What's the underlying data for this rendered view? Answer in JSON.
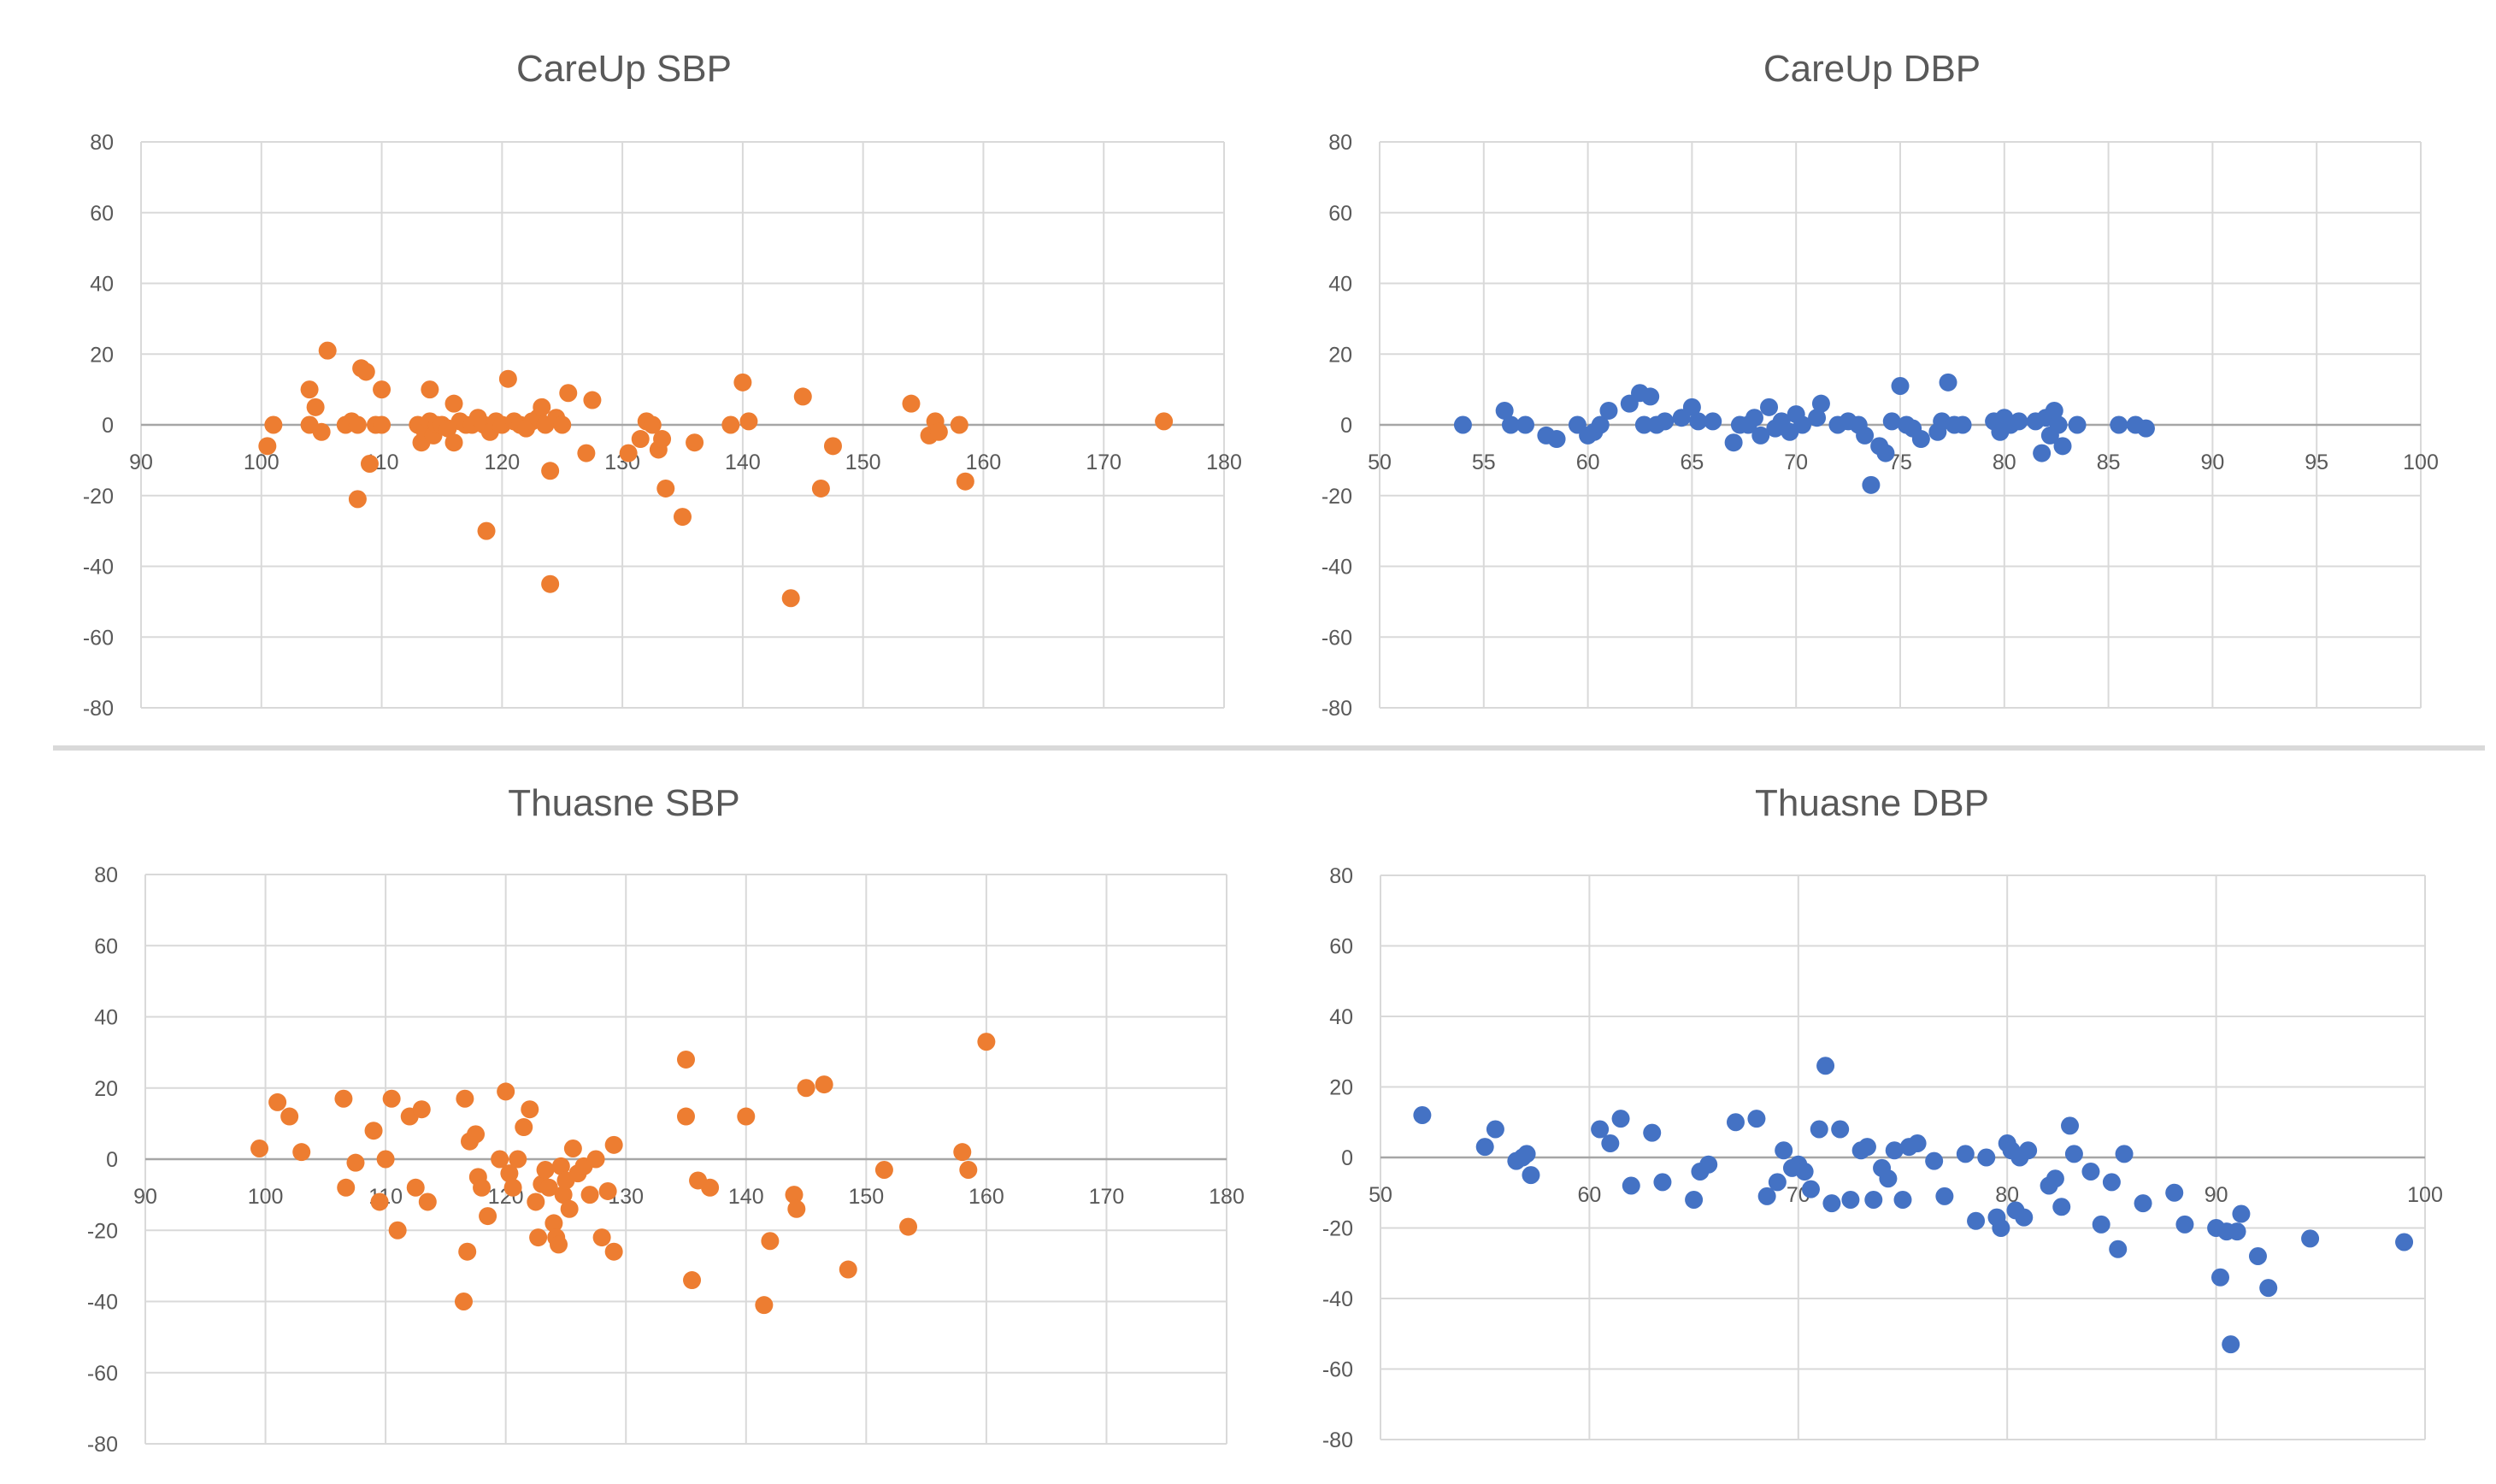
{
  "chart_data": [
    {
      "type": "scatter",
      "title": "CareUp SBP",
      "xlim": [
        90,
        180
      ],
      "ylim": [
        -80,
        80
      ],
      "xticks": [
        90,
        100,
        110,
        120,
        130,
        140,
        150,
        160,
        170,
        180
      ],
      "yticks": [
        -80,
        -60,
        -40,
        -20,
        0,
        20,
        40,
        60,
        80
      ],
      "grid": true,
      "color": "#ED7D31",
      "points": [
        [
          100.5,
          -6
        ],
        [
          101,
          0
        ],
        [
          104,
          10
        ],
        [
          104,
          0
        ],
        [
          104.5,
          5
        ],
        [
          105,
          -2
        ],
        [
          105.5,
          21
        ],
        [
          107,
          0
        ],
        [
          107.5,
          1
        ],
        [
          108,
          0
        ],
        [
          108,
          -21
        ],
        [
          108.3,
          16
        ],
        [
          108.7,
          15
        ],
        [
          109,
          -11
        ],
        [
          109.5,
          0
        ],
        [
          110,
          10
        ],
        [
          110,
          0
        ],
        [
          113,
          0
        ],
        [
          113.3,
          -5
        ],
        [
          113.6,
          -2
        ],
        [
          114,
          10
        ],
        [
          114,
          1
        ],
        [
          114.3,
          -3
        ],
        [
          114.6,
          0
        ],
        [
          115,
          0
        ],
        [
          115.5,
          -1
        ],
        [
          116,
          6
        ],
        [
          116,
          -5
        ],
        [
          116.5,
          1
        ],
        [
          117,
          0
        ],
        [
          117.5,
          0
        ],
        [
          118,
          2
        ],
        [
          118.5,
          0
        ],
        [
          118.7,
          -30
        ],
        [
          119,
          -2
        ],
        [
          119.5,
          1
        ],
        [
          120,
          0
        ],
        [
          120.5,
          13
        ],
        [
          121,
          1
        ],
        [
          121.5,
          0
        ],
        [
          122,
          -1
        ],
        [
          122.5,
          1
        ],
        [
          123,
          2
        ],
        [
          123.3,
          5
        ],
        [
          123.6,
          0
        ],
        [
          124,
          -13
        ],
        [
          124,
          -45
        ],
        [
          124.5,
          2
        ],
        [
          125,
          0
        ],
        [
          125.5,
          9
        ],
        [
          127,
          -8
        ],
        [
          127.5,
          7
        ],
        [
          130.5,
          -8
        ],
        [
          131.5,
          -4
        ],
        [
          132,
          1
        ],
        [
          132.5,
          0
        ],
        [
          133,
          -7
        ],
        [
          133.3,
          -4
        ],
        [
          133.6,
          -18
        ],
        [
          135,
          -26
        ],
        [
          136,
          -5
        ],
        [
          139,
          0
        ],
        [
          140,
          12
        ],
        [
          140.5,
          1
        ],
        [
          144,
          -49
        ],
        [
          145,
          8
        ],
        [
          146.5,
          -18
        ],
        [
          147.5,
          -6
        ],
        [
          154,
          6
        ],
        [
          155.5,
          -3
        ],
        [
          156,
          1
        ],
        [
          156.3,
          -2
        ],
        [
          158,
          0
        ],
        [
          158.5,
          -16
        ],
        [
          175,
          1
        ]
      ]
    },
    {
      "type": "scatter",
      "title": "CareUp DBP",
      "xlim": [
        50,
        100
      ],
      "ylim": [
        -80,
        80
      ],
      "xticks": [
        50,
        55,
        60,
        65,
        70,
        75,
        80,
        85,
        90,
        95,
        100
      ],
      "yticks": [
        -80,
        -60,
        -40,
        -20,
        0,
        20,
        40,
        60,
        80
      ],
      "grid": true,
      "color": "#4472C4",
      "points": [
        [
          54,
          0
        ],
        [
          56,
          4
        ],
        [
          56.3,
          0
        ],
        [
          57,
          0
        ],
        [
          58,
          -3
        ],
        [
          58.5,
          -4
        ],
        [
          59.5,
          0
        ],
        [
          60,
          -3
        ],
        [
          60.3,
          -2
        ],
        [
          60.6,
          0
        ],
        [
          61,
          4
        ],
        [
          62,
          6
        ],
        [
          62.5,
          9
        ],
        [
          62.7,
          0
        ],
        [
          63,
          8
        ],
        [
          63.3,
          0
        ],
        [
          63.7,
          1
        ],
        [
          64.5,
          2
        ],
        [
          65,
          5
        ],
        [
          65.3,
          1
        ],
        [
          66,
          1
        ],
        [
          67,
          -5
        ],
        [
          67.3,
          0
        ],
        [
          67.7,
          0
        ],
        [
          68,
          2
        ],
        [
          68.3,
          -3
        ],
        [
          68.7,
          5
        ],
        [
          69,
          -1
        ],
        [
          69.3,
          1
        ],
        [
          69.7,
          -2
        ],
        [
          70,
          3
        ],
        [
          70.3,
          0
        ],
        [
          71,
          2
        ],
        [
          71.2,
          6
        ],
        [
          72,
          0
        ],
        [
          72.5,
          1
        ],
        [
          73,
          0
        ],
        [
          73.3,
          -3
        ],
        [
          73.6,
          -17
        ],
        [
          74,
          -6
        ],
        [
          74.3,
          -8
        ],
        [
          74.6,
          1
        ],
        [
          75,
          11
        ],
        [
          75.3,
          0
        ],
        [
          75.6,
          -1
        ],
        [
          76,
          -4
        ],
        [
          76.8,
          -2
        ],
        [
          77,
          1
        ],
        [
          77.3,
          12
        ],
        [
          77.6,
          0
        ],
        [
          78,
          0
        ],
        [
          79.5,
          1
        ],
        [
          79.8,
          -2
        ],
        [
          80,
          2
        ],
        [
          80.3,
          0
        ],
        [
          80.7,
          1
        ],
        [
          81.5,
          1
        ],
        [
          81.8,
          -8
        ],
        [
          82,
          2
        ],
        [
          82.2,
          -3
        ],
        [
          82.4,
          4
        ],
        [
          82.6,
          0
        ],
        [
          82.8,
          -6
        ],
        [
          83.5,
          0
        ],
        [
          85.5,
          0
        ],
        [
          86.3,
          0
        ],
        [
          86.8,
          -1
        ]
      ]
    },
    {
      "type": "scatter",
      "title": "Thuasne SBP",
      "xlim": [
        90,
        180
      ],
      "ylim": [
        -80,
        80
      ],
      "xticks": [
        90,
        100,
        110,
        120,
        130,
        140,
        150,
        160,
        170,
        180
      ],
      "yticks": [
        -80,
        -60,
        -40,
        -20,
        0,
        20,
        40,
        60,
        80
      ],
      "grid": true,
      "color": "#ED7D31",
      "points": [
        [
          99.5,
          3
        ],
        [
          101,
          16
        ],
        [
          102,
          12
        ],
        [
          103,
          2
        ],
        [
          106.5,
          17
        ],
        [
          106.7,
          -8
        ],
        [
          107.5,
          -1
        ],
        [
          109,
          8
        ],
        [
          109.5,
          -12
        ],
        [
          110,
          0
        ],
        [
          110.5,
          17
        ],
        [
          111,
          -20
        ],
        [
          112,
          12
        ],
        [
          112.5,
          -8
        ],
        [
          113,
          14
        ],
        [
          113.5,
          -12
        ],
        [
          116.5,
          -40
        ],
        [
          116.6,
          17
        ],
        [
          116.8,
          -26
        ],
        [
          117,
          5
        ],
        [
          117.5,
          7
        ],
        [
          117.7,
          -5
        ],
        [
          118,
          -8
        ],
        [
          118.5,
          -16
        ],
        [
          119.5,
          0
        ],
        [
          120,
          19
        ],
        [
          120.3,
          -4
        ],
        [
          120.6,
          -8
        ],
        [
          121,
          0
        ],
        [
          121.5,
          9
        ],
        [
          122,
          14
        ],
        [
          122.5,
          -12
        ],
        [
          122.7,
          -22
        ],
        [
          123,
          -7
        ],
        [
          123.3,
          -3
        ],
        [
          123.6,
          -8
        ],
        [
          124,
          -18
        ],
        [
          124.2,
          -22
        ],
        [
          124.4,
          -24
        ],
        [
          124.6,
          -2
        ],
        [
          124.8,
          -10
        ],
        [
          125,
          -6
        ],
        [
          125.3,
          -14
        ],
        [
          125.6,
          3
        ],
        [
          126,
          -4
        ],
        [
          126.5,
          -2
        ],
        [
          127,
          -10
        ],
        [
          127.5,
          0
        ],
        [
          128,
          -22
        ],
        [
          128.5,
          -9
        ],
        [
          129,
          4
        ],
        [
          129,
          -26
        ],
        [
          135,
          28
        ],
        [
          135,
          12
        ],
        [
          135.5,
          -34
        ],
        [
          136,
          -6
        ],
        [
          137,
          -8
        ],
        [
          140,
          12
        ],
        [
          141.5,
          -41
        ],
        [
          142,
          -23
        ],
        [
          144,
          -10
        ],
        [
          144.2,
          -14
        ],
        [
          145,
          20
        ],
        [
          146.5,
          21
        ],
        [
          148.5,
          -31
        ],
        [
          151.5,
          -3
        ],
        [
          153.5,
          -19
        ],
        [
          158,
          2
        ],
        [
          158.5,
          -3
        ],
        [
          160,
          33
        ]
      ]
    },
    {
      "type": "scatter",
      "title": "Thuasne DBP",
      "xlim": [
        50,
        100
      ],
      "ylim": [
        -80,
        80
      ],
      "xticks": [
        50,
        60,
        70,
        80,
        90,
        100
      ],
      "yticks": [
        -80,
        -60,
        -40,
        -20,
        0,
        20,
        40,
        60,
        80
      ],
      "grid": true,
      "color": "#4472C4",
      "points": [
        [
          52,
          12
        ],
        [
          55,
          3
        ],
        [
          55.5,
          8
        ],
        [
          56.5,
          -1
        ],
        [
          56.8,
          0
        ],
        [
          57,
          1
        ],
        [
          57.2,
          -5
        ],
        [
          60.5,
          8
        ],
        [
          61,
          4
        ],
        [
          61.5,
          11
        ],
        [
          62,
          -8
        ],
        [
          63,
          7
        ],
        [
          63.5,
          -7
        ],
        [
          65,
          -12
        ],
        [
          65.3,
          -4
        ],
        [
          65.7,
          -2
        ],
        [
          67,
          10
        ],
        [
          68,
          11
        ],
        [
          68.5,
          -11
        ],
        [
          69,
          -7
        ],
        [
          69.3,
          2
        ],
        [
          69.7,
          -3
        ],
        [
          70,
          -2
        ],
        [
          70.3,
          -4
        ],
        [
          70.6,
          -9
        ],
        [
          71,
          8
        ],
        [
          71.3,
          26
        ],
        [
          71.6,
          -13
        ],
        [
          72,
          8
        ],
        [
          72.5,
          -12
        ],
        [
          73,
          2
        ],
        [
          73.3,
          3
        ],
        [
          73.6,
          -12
        ],
        [
          74,
          -3
        ],
        [
          74.3,
          -6
        ],
        [
          74.6,
          2
        ],
        [
          75,
          -12
        ],
        [
          75.3,
          3
        ],
        [
          75.7,
          4
        ],
        [
          76.5,
          -1
        ],
        [
          77,
          -11
        ],
        [
          78,
          1
        ],
        [
          78.5,
          -18
        ],
        [
          79,
          0
        ],
        [
          79.5,
          -17
        ],
        [
          79.7,
          -20
        ],
        [
          80,
          4
        ],
        [
          80.2,
          2
        ],
        [
          80.4,
          -15
        ],
        [
          80.6,
          0
        ],
        [
          80.8,
          -17
        ],
        [
          81,
          2
        ],
        [
          82,
          -8
        ],
        [
          82.3,
          -6
        ],
        [
          82.6,
          -14
        ],
        [
          83,
          9
        ],
        [
          83.2,
          1
        ],
        [
          84,
          -4
        ],
        [
          84.5,
          -19
        ],
        [
          85,
          -7
        ],
        [
          85.3,
          -26
        ],
        [
          85.6,
          1
        ],
        [
          86.5,
          -13
        ],
        [
          88,
          -10
        ],
        [
          88.5,
          -19
        ],
        [
          90,
          -20
        ],
        [
          90.2,
          -34
        ],
        [
          90.5,
          -21
        ],
        [
          90.7,
          -53
        ],
        [
          91,
          -21
        ],
        [
          91.2,
          -16
        ],
        [
          92,
          -28
        ],
        [
          92.5,
          -37
        ],
        [
          94.5,
          -23
        ],
        [
          99,
          -24
        ]
      ]
    }
  ]
}
